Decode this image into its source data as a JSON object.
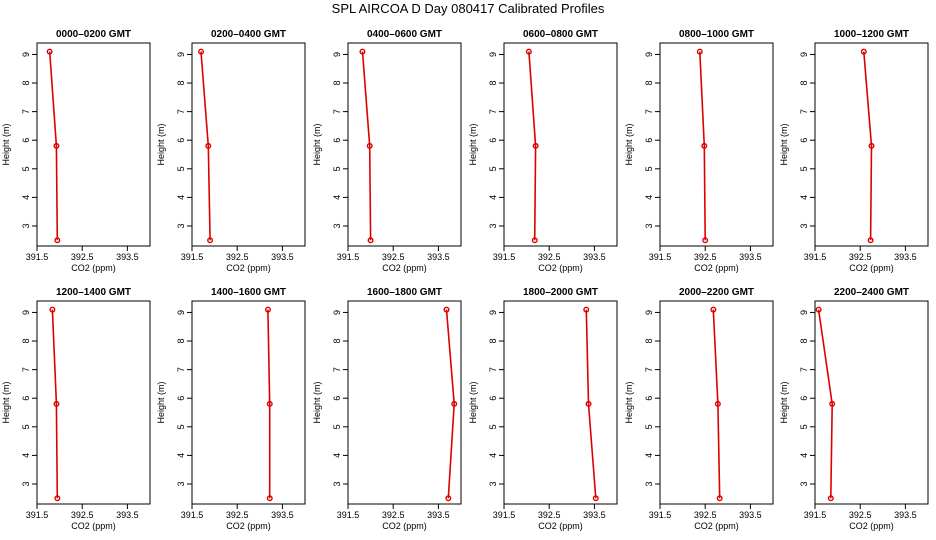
{
  "title": "SPL AIRCOA D  Day 080417  Calibrated Profiles",
  "colors": {
    "series": "#dd0000",
    "axes": "#000000"
  },
  "chart_data": [
    {
      "type": "line",
      "title": "0000–0200 GMT",
      "xlabel": "CO2 (ppm)",
      "ylabel": "Height (m)",
      "xlim": [
        391.5,
        394.0
      ],
      "ylim": [
        2.3,
        9.4
      ],
      "xticks": [
        "391.5",
        "392.5",
        "393.5"
      ],
      "yticks": [
        "3",
        "4",
        "5",
        "6",
        "7",
        "8",
        "9"
      ],
      "x": [
        391.78,
        391.93,
        391.95
      ],
      "y": [
        9.1,
        5.8,
        2.5
      ]
    },
    {
      "type": "line",
      "title": "0200–0400 GMT",
      "xlabel": "CO2 (ppm)",
      "ylabel": "Height (m)",
      "xlim": [
        391.5,
        394.0
      ],
      "ylim": [
        2.3,
        9.4
      ],
      "xticks": [
        "391.5",
        "392.5",
        "393.5"
      ],
      "yticks": [
        "3",
        "4",
        "5",
        "6",
        "7",
        "8",
        "9"
      ],
      "x": [
        391.7,
        391.86,
        391.9
      ],
      "y": [
        9.1,
        5.8,
        2.5
      ]
    },
    {
      "type": "line",
      "title": "0400–0600 GMT",
      "xlabel": "CO2 (ppm)",
      "ylabel": "Height (m)",
      "xlim": [
        391.5,
        394.0
      ],
      "ylim": [
        2.3,
        9.4
      ],
      "xticks": [
        "391.5",
        "392.5",
        "393.5"
      ],
      "yticks": [
        "3",
        "4",
        "5",
        "6",
        "7",
        "8",
        "9"
      ],
      "x": [
        391.82,
        391.98,
        392.0
      ],
      "y": [
        9.1,
        5.8,
        2.5
      ]
    },
    {
      "type": "line",
      "title": "0600–0800 GMT",
      "xlabel": "CO2 (ppm)",
      "ylabel": "Height (m)",
      "xlim": [
        391.5,
        394.0
      ],
      "ylim": [
        2.3,
        9.4
      ],
      "xticks": [
        "391.5",
        "392.5",
        "393.5"
      ],
      "yticks": [
        "3",
        "4",
        "5",
        "6",
        "7",
        "8",
        "9"
      ],
      "x": [
        392.05,
        392.2,
        392.18
      ],
      "y": [
        9.1,
        5.8,
        2.5
      ]
    },
    {
      "type": "line",
      "title": "0800–1000 GMT",
      "xlabel": "CO2 (ppm)",
      "ylabel": "Height (m)",
      "xlim": [
        391.5,
        394.0
      ],
      "ylim": [
        2.3,
        9.4
      ],
      "xticks": [
        "391.5",
        "392.5",
        "393.5"
      ],
      "yticks": [
        "3",
        "4",
        "5",
        "6",
        "7",
        "8",
        "9"
      ],
      "x": [
        392.38,
        392.48,
        392.5
      ],
      "y": [
        9.1,
        5.8,
        2.5
      ]
    },
    {
      "type": "line",
      "title": "1000–1200 GMT",
      "xlabel": "CO2 (ppm)",
      "ylabel": "Height (m)",
      "xlim": [
        391.5,
        394.0
      ],
      "ylim": [
        2.3,
        9.4
      ],
      "xticks": [
        "391.5",
        "392.5",
        "393.5"
      ],
      "yticks": [
        "3",
        "4",
        "5",
        "6",
        "7",
        "8",
        "9"
      ],
      "x": [
        392.58,
        392.75,
        392.73
      ],
      "y": [
        9.1,
        5.8,
        2.5
      ]
    },
    {
      "type": "line",
      "title": "1200–1400 GMT",
      "xlabel": "CO2 (ppm)",
      "ylabel": "Height (m)",
      "xlim": [
        391.5,
        394.0
      ],
      "ylim": [
        2.3,
        9.4
      ],
      "xticks": [
        "391.5",
        "392.5",
        "393.5"
      ],
      "yticks": [
        "3",
        "4",
        "5",
        "6",
        "7",
        "8",
        "9"
      ],
      "x": [
        391.84,
        391.93,
        391.95
      ],
      "y": [
        9.1,
        5.8,
        2.5
      ]
    },
    {
      "type": "line",
      "title": "1400–1600 GMT",
      "xlabel": "CO2 (ppm)",
      "ylabel": "Height (m)",
      "xlim": [
        391.5,
        394.0
      ],
      "ylim": [
        2.3,
        9.4
      ],
      "xticks": [
        "391.5",
        "392.5",
        "393.5"
      ],
      "yticks": [
        "3",
        "4",
        "5",
        "6",
        "7",
        "8",
        "9"
      ],
      "x": [
        393.18,
        393.22,
        393.22
      ],
      "y": [
        9.1,
        5.8,
        2.5
      ]
    },
    {
      "type": "line",
      "title": "1600–1800 GMT",
      "xlabel": "CO2 (ppm)",
      "ylabel": "Height (m)",
      "xlim": [
        391.5,
        394.0
      ],
      "ylim": [
        2.3,
        9.4
      ],
      "xticks": [
        "391.5",
        "392.5",
        "393.5"
      ],
      "yticks": [
        "3",
        "4",
        "5",
        "6",
        "7",
        "8",
        "9"
      ],
      "x": [
        393.68,
        393.85,
        393.72
      ],
      "y": [
        9.1,
        5.8,
        2.5
      ]
    },
    {
      "type": "line",
      "title": "1800–2000 GMT",
      "xlabel": "CO2 (ppm)",
      "ylabel": "Height (m)",
      "xlim": [
        391.5,
        394.0
      ],
      "ylim": [
        2.3,
        9.4
      ],
      "xticks": [
        "391.5",
        "392.5",
        "393.5"
      ],
      "yticks": [
        "3",
        "4",
        "5",
        "6",
        "7",
        "8",
        "9"
      ],
      "x": [
        393.32,
        393.37,
        393.53
      ],
      "y": [
        9.1,
        5.8,
        2.5
      ]
    },
    {
      "type": "line",
      "title": "2000–2200 GMT",
      "xlabel": "CO2 (ppm)",
      "ylabel": "Height (m)",
      "xlim": [
        391.5,
        394.0
      ],
      "ylim": [
        2.3,
        9.4
      ],
      "xticks": [
        "391.5",
        "392.5",
        "393.5"
      ],
      "yticks": [
        "3",
        "4",
        "5",
        "6",
        "7",
        "8",
        "9"
      ],
      "x": [
        392.68,
        392.78,
        392.82
      ],
      "y": [
        9.1,
        5.8,
        2.5
      ]
    },
    {
      "type": "line",
      "title": "2200–2400 GMT",
      "xlabel": "CO2 (ppm)",
      "ylabel": "Height (m)",
      "xlim": [
        391.5,
        394.0
      ],
      "ylim": [
        2.3,
        9.4
      ],
      "xticks": [
        "391.5",
        "392.5",
        "393.5"
      ],
      "yticks": [
        "3",
        "4",
        "5",
        "6",
        "7",
        "8",
        "9"
      ],
      "x": [
        391.58,
        391.88,
        391.85
      ],
      "y": [
        9.1,
        5.8,
        2.5
      ]
    }
  ]
}
